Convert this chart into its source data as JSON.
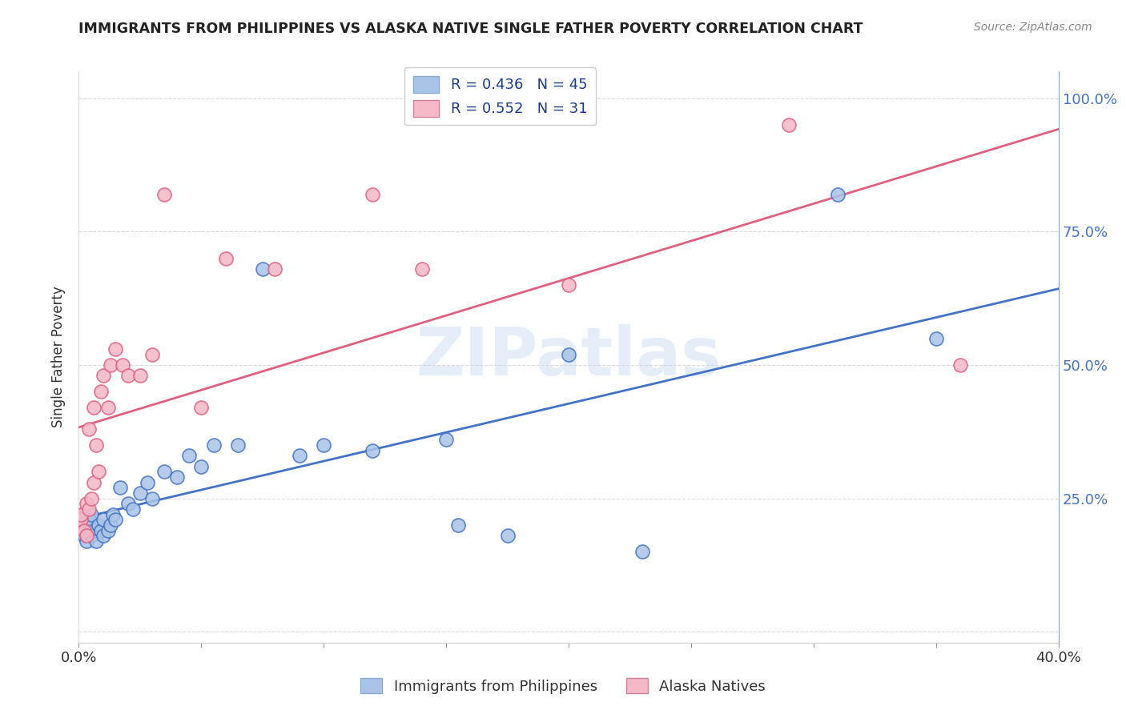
{
  "title": "IMMIGRANTS FROM PHILIPPINES VS ALASKA NATIVE SINGLE FATHER POVERTY CORRELATION CHART",
  "source": "Source: ZipAtlas.com",
  "xlabel_bottom": "Immigrants from Philippines",
  "xlabel_right": "Alaska Natives",
  "ylabel": "Single Father Poverty",
  "watermark": "ZIPatlas",
  "xlim": [
    0.0,
    0.4
  ],
  "ylim": [
    -0.02,
    1.05
  ],
  "yticks": [
    0.0,
    0.25,
    0.5,
    0.75,
    1.0
  ],
  "xticks": [
    0.0,
    0.05,
    0.1,
    0.15,
    0.2,
    0.25,
    0.3,
    0.35,
    0.4
  ],
  "blue_R": 0.436,
  "blue_N": 45,
  "pink_R": 0.552,
  "pink_N": 31,
  "blue_color": "#aac4e8",
  "pink_color": "#f5b8c8",
  "blue_line_color": "#4472c4",
  "pink_line_color": "#e06080",
  "blue_scatter_x": [
    0.0,
    0.001,
    0.001,
    0.002,
    0.002,
    0.002,
    0.003,
    0.003,
    0.004,
    0.004,
    0.005,
    0.005,
    0.006,
    0.007,
    0.008,
    0.009,
    0.01,
    0.01,
    0.012,
    0.013,
    0.014,
    0.015,
    0.017,
    0.02,
    0.022,
    0.025,
    0.028,
    0.03,
    0.035,
    0.04,
    0.045,
    0.05,
    0.055,
    0.065,
    0.075,
    0.09,
    0.1,
    0.12,
    0.15,
    0.155,
    0.175,
    0.2,
    0.23,
    0.31,
    0.35
  ],
  "blue_scatter_y": [
    0.2,
    0.19,
    0.21,
    0.18,
    0.2,
    0.22,
    0.17,
    0.2,
    0.19,
    0.21,
    0.18,
    0.22,
    0.19,
    0.17,
    0.2,
    0.19,
    0.18,
    0.21,
    0.19,
    0.2,
    0.22,
    0.21,
    0.27,
    0.24,
    0.23,
    0.26,
    0.28,
    0.25,
    0.3,
    0.29,
    0.33,
    0.31,
    0.35,
    0.35,
    0.68,
    0.33,
    0.35,
    0.34,
    0.36,
    0.2,
    0.18,
    0.52,
    0.15,
    0.82,
    0.55
  ],
  "pink_scatter_x": [
    0.0,
    0.001,
    0.001,
    0.002,
    0.003,
    0.003,
    0.004,
    0.004,
    0.005,
    0.006,
    0.006,
    0.007,
    0.008,
    0.009,
    0.01,
    0.012,
    0.013,
    0.015,
    0.018,
    0.02,
    0.025,
    0.03,
    0.035,
    0.05,
    0.06,
    0.08,
    0.12,
    0.14,
    0.2,
    0.29,
    0.36
  ],
  "pink_scatter_y": [
    0.2,
    0.21,
    0.22,
    0.19,
    0.18,
    0.24,
    0.23,
    0.38,
    0.25,
    0.28,
    0.42,
    0.35,
    0.3,
    0.45,
    0.48,
    0.42,
    0.5,
    0.53,
    0.5,
    0.48,
    0.48,
    0.52,
    0.82,
    0.42,
    0.7,
    0.68,
    0.82,
    0.68,
    0.65,
    0.95,
    0.5
  ],
  "background_color": "#ffffff",
  "grid_color": "#d0d0d0"
}
